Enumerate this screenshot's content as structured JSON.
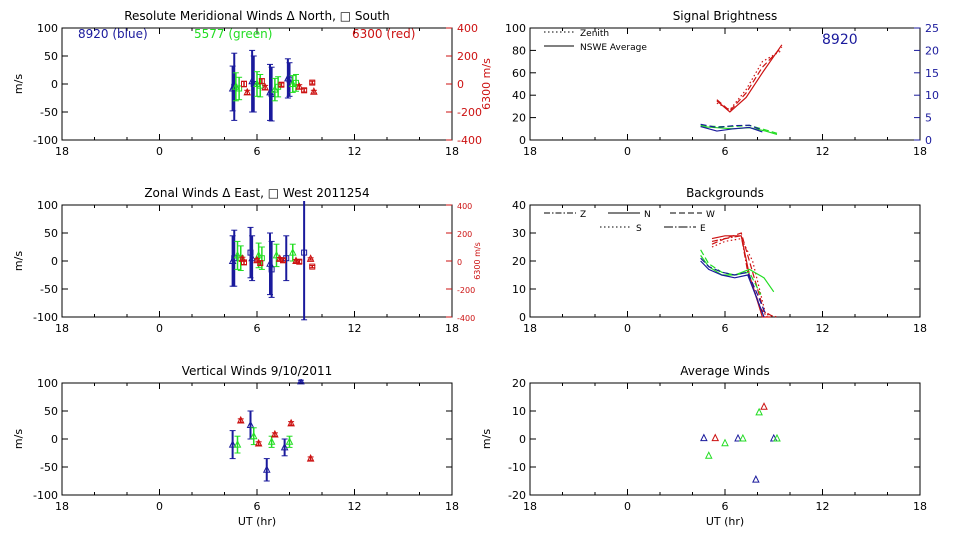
{
  "colors": {
    "blue": "#1a1a9c",
    "green": "#22dd22",
    "red": "#cc1111",
    "axis": "#000000"
  },
  "chart_data": [
    {
      "id": "meridional",
      "type": "scatter",
      "title": "Resolute Meridional Winds Δ North, □ South",
      "xlabel": "",
      "ylabel": "m/s",
      "right_ylabel": "6300 m/s",
      "x_ticks": [
        "18",
        "0",
        "6",
        "12",
        "18"
      ],
      "y_ticks": [
        "100",
        "50",
        "0",
        "-50",
        "-100"
      ],
      "right_ticks": [
        "400",
        "200",
        "0",
        "-200",
        "-400"
      ],
      "ylim": [
        -100,
        100
      ],
      "right_ylim": [
        -400,
        400
      ],
      "annotations": [
        {
          "text": "8920 (blue)",
          "color": "blue"
        },
        {
          "text": "5577 (green)",
          "color": "green"
        },
        {
          "text": "6300 (red)",
          "color": "red"
        }
      ],
      "series": [
        {
          "color": "blue",
          "points": [
            {
              "x": 4.5,
              "y": -8,
              "err": 40,
              "marker": "tri"
            },
            {
              "x": 4.6,
              "y": -5,
              "err": 60,
              "marker": "sq"
            },
            {
              "x": 5.7,
              "y": 5,
              "err": 55,
              "marker": "tri"
            },
            {
              "x": 5.8,
              "y": 0,
              "err": 50,
              "marker": "sq"
            },
            {
              "x": 6.8,
              "y": -15,
              "err": 50,
              "marker": "tri"
            },
            {
              "x": 6.9,
              "y": -18,
              "err": 48,
              "marker": "sq"
            },
            {
              "x": 7.9,
              "y": 10,
              "err": 35,
              "marker": "tri"
            },
            {
              "x": 8.0,
              "y": 8,
              "err": 30,
              "marker": "sq"
            }
          ]
        },
        {
          "color": "green",
          "points": [
            {
              "x": 4.7,
              "y": -5,
              "err": 25,
              "marker": "tri"
            },
            {
              "x": 4.9,
              "y": -8,
              "err": 20,
              "marker": "sq"
            },
            {
              "x": 6.0,
              "y": 0,
              "err": 22,
              "marker": "tri"
            },
            {
              "x": 6.2,
              "y": -3,
              "err": 20,
              "marker": "sq"
            },
            {
              "x": 7.1,
              "y": -10,
              "err": 20,
              "marker": "tri"
            },
            {
              "x": 7.3,
              "y": -5,
              "err": 18,
              "marker": "sq"
            },
            {
              "x": 8.2,
              "y": 0,
              "err": 15,
              "marker": "tri"
            },
            {
              "x": 8.4,
              "y": 2,
              "err": 15,
              "marker": "sq"
            }
          ]
        },
        {
          "color": "red",
          "axis": "right",
          "points": [
            {
              "x": 5.2,
              "y": 0,
              "err": 20,
              "marker": "sq"
            },
            {
              "x": 5.4,
              "y": -60,
              "err": 15,
              "marker": "tri"
            },
            {
              "x": 6.3,
              "y": 20,
              "err": 18,
              "marker": "sq"
            },
            {
              "x": 6.5,
              "y": -25,
              "err": 15,
              "marker": "tri"
            },
            {
              "x": 7.5,
              "y": -5,
              "err": 12,
              "marker": "sq"
            },
            {
              "x": 8.6,
              "y": -20,
              "err": 15,
              "marker": "tri"
            },
            {
              "x": 8.9,
              "y": -45,
              "err": 12,
              "marker": "sq"
            },
            {
              "x": 9.4,
              "y": 10,
              "err": 10,
              "marker": "sq"
            },
            {
              "x": 9.5,
              "y": -55,
              "err": 10,
              "marker": "tri"
            }
          ]
        }
      ]
    },
    {
      "id": "zonal",
      "type": "scatter",
      "title": "Zonal Winds Δ East, □ West 2011254",
      "xlabel": "",
      "ylabel": "m/s",
      "right_ylabel": "6300 m/s",
      "x_ticks": [
        "18",
        "0",
        "6",
        "12",
        "18"
      ],
      "y_ticks": [
        "100",
        "50",
        "0",
        "-50",
        "-100"
      ],
      "right_ticks": [
        "400",
        "200",
        "0",
        "-200",
        "-400"
      ],
      "ylim": [
        -100,
        100
      ],
      "right_ylim": [
        -400,
        400
      ],
      "series": [
        {
          "color": "blue",
          "points": [
            {
              "x": 4.5,
              "y": 0,
              "err": 45,
              "marker": "tri"
            },
            {
              "x": 4.6,
              "y": 5,
              "err": 50,
              "marker": "sq"
            },
            {
              "x": 5.6,
              "y": 15,
              "err": 45,
              "marker": "sq"
            },
            {
              "x": 5.7,
              "y": 5,
              "err": 40,
              "marker": "tri"
            },
            {
              "x": 6.8,
              "y": -5,
              "err": 55,
              "marker": "tri"
            },
            {
              "x": 6.9,
              "y": -15,
              "err": 50,
              "marker": "sq"
            },
            {
              "x": 7.8,
              "y": 5,
              "err": 40,
              "marker": "sq"
            },
            {
              "x": 8.9,
              "y": 15,
              "err": 120,
              "marker": "sq"
            }
          ]
        },
        {
          "color": "green",
          "points": [
            {
              "x": 4.8,
              "y": 10,
              "err": 25,
              "marker": "tri"
            },
            {
              "x": 5.0,
              "y": 5,
              "err": 22,
              "marker": "sq"
            },
            {
              "x": 6.1,
              "y": 10,
              "err": 22,
              "marker": "tri"
            },
            {
              "x": 6.3,
              "y": 5,
              "err": 20,
              "marker": "sq"
            },
            {
              "x": 7.2,
              "y": 10,
              "err": 20,
              "marker": "tri"
            },
            {
              "x": 8.2,
              "y": 15,
              "err": 15,
              "marker": "tri"
            }
          ]
        },
        {
          "color": "red",
          "axis": "right",
          "points": [
            {
              "x": 5.1,
              "y": 15,
              "err": 12,
              "marker": "tri"
            },
            {
              "x": 5.2,
              "y": -10,
              "err": 15,
              "marker": "sq"
            },
            {
              "x": 6.0,
              "y": 5,
              "err": 12,
              "marker": "tri"
            },
            {
              "x": 6.2,
              "y": -15,
              "err": 15,
              "marker": "sq"
            },
            {
              "x": 7.4,
              "y": 15,
              "err": 10,
              "marker": "tri"
            },
            {
              "x": 7.6,
              "y": 5,
              "err": 12,
              "marker": "sq"
            },
            {
              "x": 8.4,
              "y": 0,
              "err": 10,
              "marker": "tri"
            },
            {
              "x": 8.6,
              "y": -5,
              "err": 12,
              "marker": "sq"
            },
            {
              "x": 9.3,
              "y": 15,
              "err": 8,
              "marker": "tri"
            },
            {
              "x": 9.4,
              "y": -40,
              "err": 8,
              "marker": "sq"
            }
          ]
        }
      ]
    },
    {
      "id": "vertical",
      "type": "scatter",
      "title": "Vertical Winds 9/10/2011",
      "xlabel": "UT (hr)",
      "ylabel": "m/s",
      "x_ticks": [
        "18",
        "0",
        "6",
        "12",
        "18"
      ],
      "y_ticks": [
        "100",
        "50",
        "0",
        "-50",
        "-100"
      ],
      "ylim": [
        -100,
        100
      ],
      "series": [
        {
          "color": "blue",
          "points": [
            {
              "x": 4.5,
              "y": -10,
              "err": 25,
              "marker": "tri"
            },
            {
              "x": 5.6,
              "y": 25,
              "err": 25,
              "marker": "tri"
            },
            {
              "x": 6.6,
              "y": -55,
              "err": 20,
              "marker": "tri"
            },
            {
              "x": 7.7,
              "y": -15,
              "err": 15,
              "marker": "tri"
            },
            {
              "x": 8.7,
              "y": 103,
              "err": 2,
              "marker": "tri"
            }
          ]
        },
        {
          "color": "green",
          "points": [
            {
              "x": 4.8,
              "y": -10,
              "err": 15,
              "marker": "tri"
            },
            {
              "x": 5.8,
              "y": 5,
              "err": 15,
              "marker": "tri"
            },
            {
              "x": 6.9,
              "y": -5,
              "err": 10,
              "marker": "tri"
            },
            {
              "x": 8.0,
              "y": -5,
              "err": 10,
              "marker": "tri"
            }
          ]
        },
        {
          "color": "red",
          "points": [
            {
              "x": 5.0,
              "y": 33,
              "err": 3,
              "marker": "tri"
            },
            {
              "x": 6.1,
              "y": -8,
              "err": 3,
              "marker": "tri"
            },
            {
              "x": 7.1,
              "y": 8,
              "err": 3,
              "marker": "tri"
            },
            {
              "x": 8.1,
              "y": 28,
              "err": 3,
              "marker": "tri"
            },
            {
              "x": 9.3,
              "y": -35,
              "err": 3,
              "marker": "tri"
            }
          ]
        }
      ]
    },
    {
      "id": "brightness",
      "type": "line",
      "title": "Signal Brightness",
      "xlabel": "",
      "ylabel": "",
      "x_ticks": [
        "18",
        "0",
        "6",
        "12",
        "18"
      ],
      "y_ticks": [
        "100",
        "80",
        "60",
        "40",
        "20",
        "0"
      ],
      "right_ticks": [
        "25",
        "20",
        "15",
        "10",
        "5",
        "0"
      ],
      "ylim": [
        0,
        100
      ],
      "right_ylim": [
        0,
        25
      ],
      "legend": [
        {
          "label": "Zenith",
          "dash": "dotted"
        },
        {
          "label": "NSWE Average",
          "dash": "solid"
        }
      ],
      "annotation": "8920",
      "series": [
        {
          "color": "red",
          "dash": "solid",
          "x": [
            5.5,
            6.3,
            7.3,
            8.3,
            9.5
          ],
          "y": [
            35,
            25,
            38,
            60,
            85
          ]
        },
        {
          "color": "red",
          "dash": "dashed",
          "x": [
            5.5,
            6.3,
            7.3,
            8.3,
            9.5
          ],
          "y": [
            36,
            26,
            42,
            65,
            83
          ]
        },
        {
          "color": "red",
          "dash": "dotted",
          "x": [
            5.5,
            6.3,
            7.3,
            8.3,
            9.5
          ],
          "y": [
            33,
            27,
            45,
            70,
            80
          ]
        },
        {
          "color": "green",
          "dash": "solid",
          "x": [
            4.5,
            5.5,
            6.5,
            7.5,
            8.5,
            9.2
          ],
          "y": [
            12,
            11,
            10,
            11,
            8,
            5
          ]
        },
        {
          "color": "green",
          "dash": "dashed",
          "x": [
            4.5,
            5.5,
            6.5,
            7.5,
            8.5,
            9.2
          ],
          "y": [
            13,
            12,
            12,
            13,
            9,
            6
          ]
        },
        {
          "color": "blue",
          "axis": "right",
          "dash": "solid",
          "x": [
            4.5,
            5.5,
            6.5,
            7.5,
            8.3
          ],
          "y": [
            3,
            2,
            2.5,
            2.8,
            1.8
          ]
        },
        {
          "color": "blue",
          "axis": "right",
          "dash": "dashed",
          "x": [
            4.5,
            5.5,
            6.5,
            7.5,
            8.3
          ],
          "y": [
            3.5,
            2.8,
            3.2,
            3.3,
            2.2
          ]
        }
      ]
    },
    {
      "id": "backgrounds",
      "type": "line",
      "title": "Backgrounds",
      "xlabel": "",
      "ylabel": "",
      "x_ticks": [
        "18",
        "0",
        "6",
        "12",
        "18"
      ],
      "y_ticks": [
        "40",
        "30",
        "20",
        "10",
        "0"
      ],
      "ylim": [
        0,
        40
      ],
      "legend": [
        {
          "label": "Z",
          "dash": "dashdot"
        },
        {
          "label": "N",
          "dash": "solid"
        },
        {
          "label": "W",
          "dash": "dashed"
        },
        {
          "label": "S",
          "dash": "dotted"
        },
        {
          "label": "E",
          "dash": "longdashdot"
        }
      ],
      "series": [
        {
          "color": "red",
          "dash": "solid",
          "x": [
            5.2,
            6.0,
            7.0,
            7.5,
            8.3,
            8.8
          ],
          "y": [
            28,
            29,
            29,
            15,
            0,
            0
          ]
        },
        {
          "color": "red",
          "dash": "dashed",
          "x": [
            5.2,
            6.0,
            7.0,
            7.6,
            8.4,
            9.0
          ],
          "y": [
            26,
            28,
            30,
            18,
            2,
            0
          ]
        },
        {
          "color": "red",
          "dash": "dotted",
          "x": [
            5.2,
            6.0,
            7.0,
            7.7,
            8.5,
            9.2
          ],
          "y": [
            25,
            27,
            28,
            20,
            1,
            0
          ]
        },
        {
          "color": "red",
          "dash": "dashdot",
          "x": [
            5.2,
            6.0,
            7.0,
            7.4,
            8.2,
            8.6
          ],
          "y": [
            27,
            28,
            29,
            16,
            3,
            0
          ]
        },
        {
          "color": "green",
          "dash": "solid",
          "x": [
            4.5,
            5.0,
            5.8,
            6.6,
            7.5,
            8.4,
            9.0
          ],
          "y": [
            22,
            18,
            15,
            15,
            17,
            14,
            9
          ]
        },
        {
          "color": "green",
          "dash": "dashed",
          "x": [
            4.5,
            5.0,
            5.8,
            6.6,
            7.5,
            8.2
          ],
          "y": [
            24,
            19,
            16,
            15,
            16,
            8
          ]
        },
        {
          "color": "blue",
          "dash": "solid",
          "x": [
            4.5,
            5.0,
            5.8,
            6.6,
            7.4,
            8.0,
            8.4
          ],
          "y": [
            20,
            17,
            15,
            14,
            15,
            6,
            0
          ]
        },
        {
          "color": "blue",
          "dash": "dashed",
          "x": [
            4.5,
            5.0,
            5.8,
            6.6,
            7.4,
            8.0,
            8.5
          ],
          "y": [
            21,
            18,
            16,
            15,
            16,
            8,
            1
          ]
        }
      ]
    },
    {
      "id": "average",
      "type": "scatter",
      "title": "Average Winds",
      "xlabel": "UT (hr)",
      "ylabel": "m/s",
      "x_ticks": [
        "18",
        "0",
        "6",
        "12",
        "18"
      ],
      "y_ticks": [
        "20",
        "10",
        "0",
        "-10",
        "-20"
      ],
      "ylim": [
        -20,
        20
      ],
      "series": [
        {
          "color": "blue",
          "points": [
            {
              "x": 4.7,
              "y": 0.3,
              "marker": "tri"
            },
            {
              "x": 6.8,
              "y": 0.2,
              "marker": "tri"
            },
            {
              "x": 7.9,
              "y": -14.5,
              "marker": "tri"
            },
            {
              "x": 9.0,
              "y": 0.2,
              "marker": "tri"
            }
          ]
        },
        {
          "color": "green",
          "points": [
            {
              "x": 5.0,
              "y": -6,
              "marker": "tri"
            },
            {
              "x": 6.0,
              "y": -1.5,
              "marker": "tri"
            },
            {
              "x": 7.1,
              "y": 0.2,
              "marker": "tri"
            },
            {
              "x": 8.1,
              "y": 9.5,
              "marker": "tri"
            },
            {
              "x": 9.2,
              "y": 0.2,
              "marker": "tri"
            }
          ]
        },
        {
          "color": "red",
          "points": [
            {
              "x": 5.4,
              "y": 0.3,
              "marker": "tri"
            },
            {
              "x": 8.4,
              "y": 11.5,
              "marker": "tri"
            }
          ]
        }
      ]
    }
  ]
}
